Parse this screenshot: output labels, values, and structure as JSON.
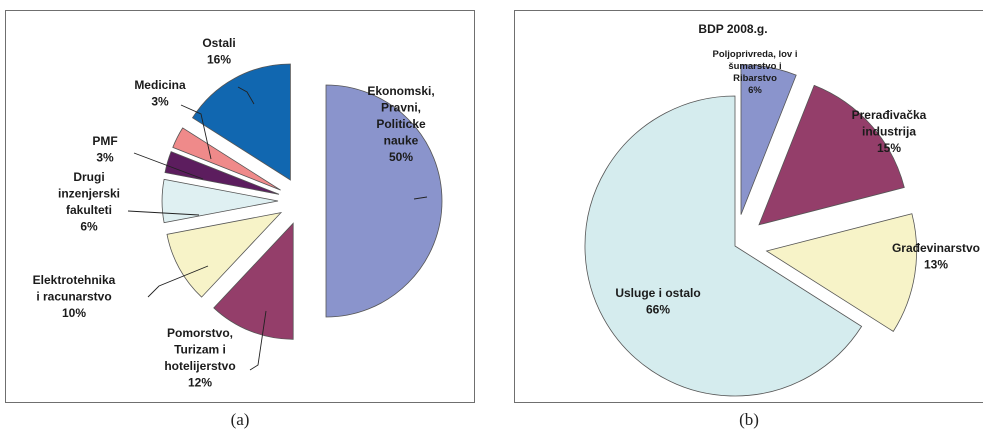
{
  "chart_data": [
    {
      "type": "pie",
      "title": "",
      "caption": "(a)",
      "categories": [
        "Ekonomski, Pravni, Politicke nauke",
        "Pomorstvo, Turizam i hotelijerstvo",
        "Elektrotehnika i racunarstvo",
        "Drugi inzenjerski fakulteti",
        "PMF",
        "Medicina",
        "Ostali"
      ],
      "values": [
        50,
        12,
        10,
        6,
        3,
        3,
        16
      ],
      "value_labels": [
        "50%",
        "12%",
        "10%",
        "6%",
        "3%",
        "3%",
        "16%"
      ],
      "label_lines": [
        [
          "Ekonomski,",
          "Pravni,",
          "Politicke",
          "nauke"
        ],
        [
          "Pomorstvo,",
          "Turizam i",
          "hotelijerstvo"
        ],
        [
          "Elektrotehnika",
          "i racunarstvo"
        ],
        [
          "Drugi",
          "inzenjerski",
          "fakulteti"
        ],
        [
          "PMF"
        ],
        [
          "Medicina"
        ],
        [
          "Ostali"
        ]
      ],
      "colors": [
        "#8a94cc",
        "#943e6a",
        "#f7f3c8",
        "#dff0f2",
        "#5c1d5e",
        "#ef8a8a",
        "#1167b0"
      ],
      "legend": "none"
    },
    {
      "type": "pie",
      "title": "BDP 2008.g.",
      "caption": "(b)",
      "categories": [
        "Poljoprivreda, lov i šumarstvo i Ribarstvo",
        "Prerađivačka industrija",
        "Građevinarstvo",
        "Usluge i ostalo"
      ],
      "values": [
        6,
        15,
        13,
        66
      ],
      "value_labels": [
        "6%",
        "15%",
        "13%",
        "66%"
      ],
      "label_lines": [
        [
          "Poljoprivreda, lov i",
          "šumarstvo i",
          "Ribarstvo"
        ],
        [
          "Prerađivačka",
          "industrija"
        ],
        [
          "Građevinarstvo"
        ],
        [
          "Usluge i ostalo"
        ]
      ],
      "colors": [
        "#8a94cc",
        "#943e6a",
        "#f7f3c8",
        "#d5ecee"
      ],
      "legend": "none"
    }
  ]
}
